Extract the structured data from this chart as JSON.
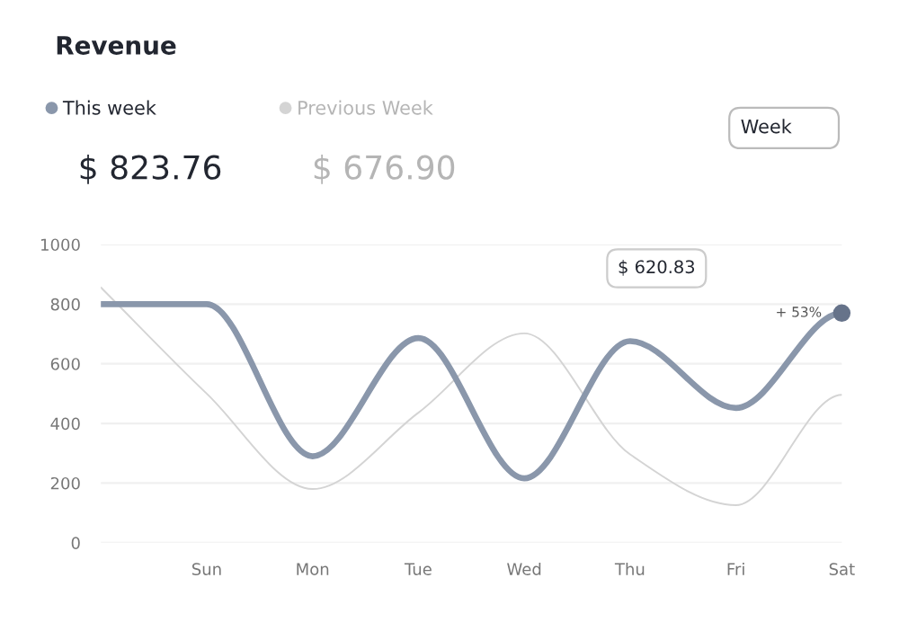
{
  "chart_data": {
    "type": "line",
    "title": "Revenue",
    "categories": [
      null,
      "Sun",
      "Mon",
      "Tue",
      "Wed",
      "Thu",
      "Fri",
      "Sat"
    ],
    "ylim": [
      0,
      1000
    ],
    "yticks": [
      0,
      200,
      400,
      600,
      800,
      1000
    ],
    "grid": "y",
    "legend": "top left",
    "series": [
      {
        "name": "This week",
        "color": "#8a97ab",
        "values": [
          800,
          800,
          290,
          686,
          216,
          676,
          452,
          770
        ]
      },
      {
        "name": "Previous Week",
        "color": "#d4d4d4",
        "values": [
          856,
          500,
          180,
          436,
          702,
          296,
          126,
          496
        ]
      }
    ],
    "annotations": [
      "$ 823.76",
      "$ 676.90",
      "$ 620.83",
      "+ 53%",
      "Week"
    ]
  }
}
